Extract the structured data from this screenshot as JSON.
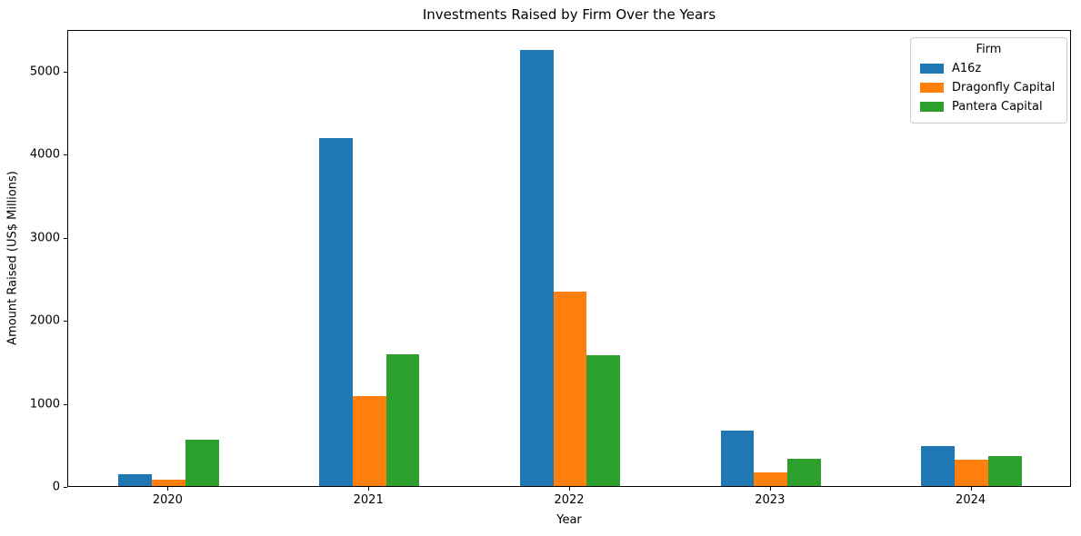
{
  "title": "Investments Raised by Firm Over the Years",
  "legend": {
    "title": "Firm",
    "entries": [
      "A16z",
      "Dragonfly Capital",
      "Pantera Capital"
    ]
  },
  "chart_data": {
    "type": "bar",
    "title": "Investments Raised by Firm Over the Years",
    "xlabel": "Year",
    "ylabel": "Amount Raised (US$ Millions)",
    "categories": [
      "2020",
      "2021",
      "2022",
      "2023",
      "2024"
    ],
    "series": [
      {
        "name": "A16z",
        "color": "#1f77b4",
        "values": [
          140,
          4190,
          5250,
          665,
          485
        ]
      },
      {
        "name": "Dragonfly Capital",
        "color": "#ff7f0e",
        "values": [
          80,
          1080,
          2340,
          160,
          320
        ]
      },
      {
        "name": "Pantera Capital",
        "color": "#2ca02c",
        "values": [
          555,
          1590,
          1570,
          330,
          360
        ]
      }
    ],
    "ylim": [
      0,
      5500
    ],
    "yticks": [
      0,
      1000,
      2000,
      3000,
      4000,
      5000
    ],
    "grid": false,
    "legend_position": "upper right",
    "legend_title": "Firm"
  }
}
